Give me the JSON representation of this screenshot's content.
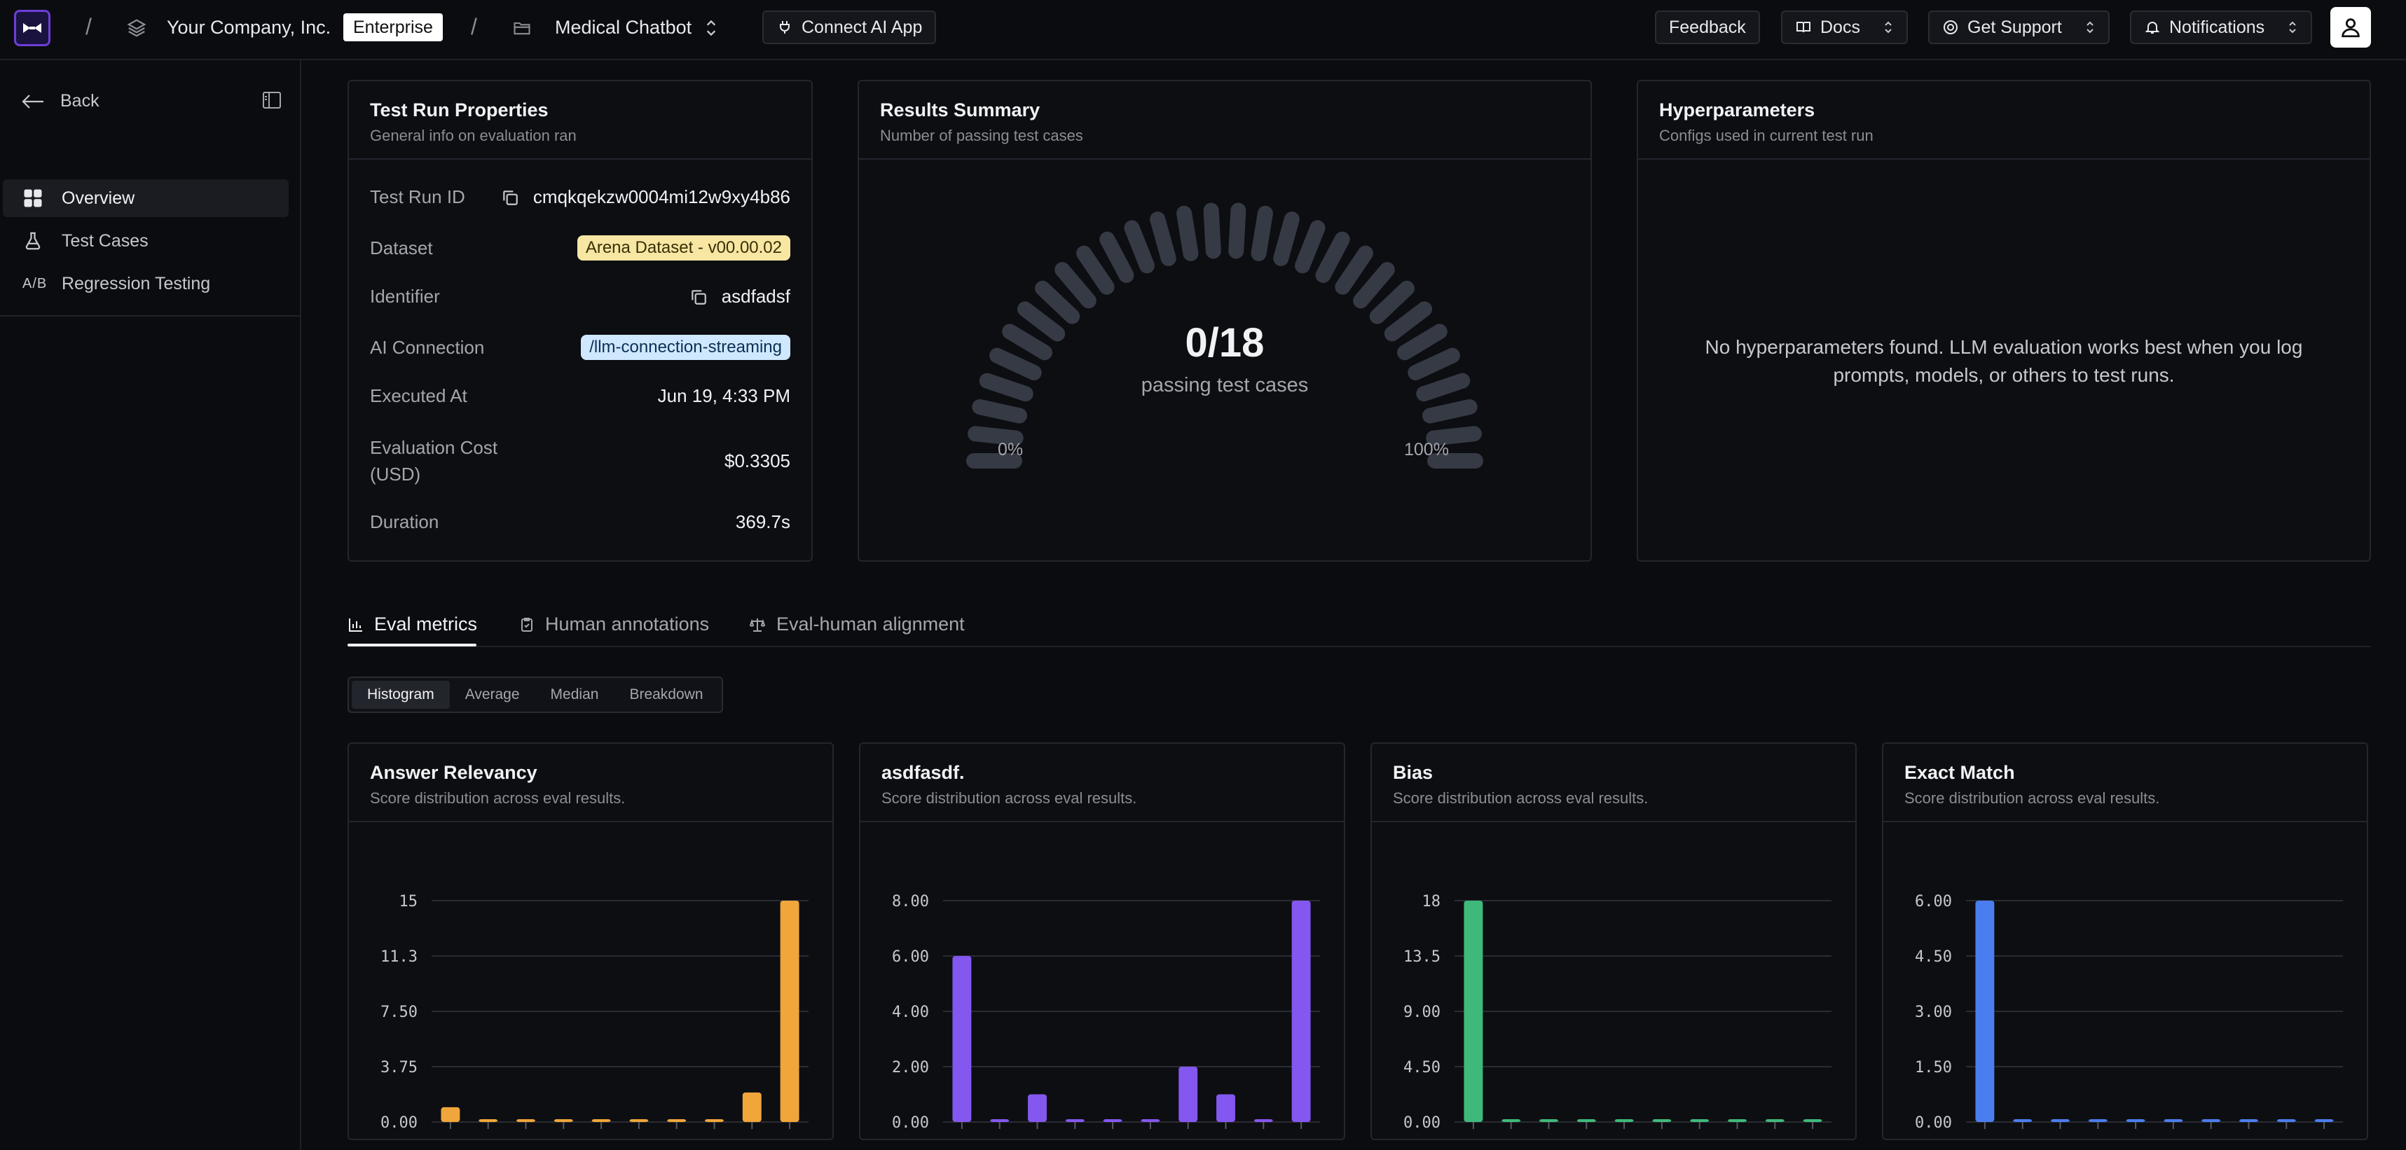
{
  "header": {
    "org_name": "Your Company, Inc.",
    "plan_badge": "Enterprise",
    "project_name": "Medical Chatbot",
    "connect_button": "Connect AI App",
    "feedback_button": "Feedback",
    "docs_button": "Docs",
    "support_button": "Get Support",
    "notifications_button": "Notifications"
  },
  "sidebar": {
    "back_label": "Back",
    "items": [
      {
        "label": "Overview",
        "icon": "grid-icon",
        "active": true
      },
      {
        "label": "Test Cases",
        "icon": "flask-icon",
        "active": false
      },
      {
        "label": "Regression Testing",
        "icon": "ab-icon",
        "active": false
      }
    ]
  },
  "test_run": {
    "title": "Test Run Properties",
    "subtitle": "General info on evaluation ran",
    "rows": [
      {
        "label": "Test Run ID",
        "value": "cmqkqekzw0004mi12w9xy4b86"
      },
      {
        "label": "Dataset",
        "value": "Arena Dataset - v00.00.02"
      },
      {
        "label": "Identifier",
        "value": "asdfadsf"
      },
      {
        "label": "AI Connection",
        "value": "/llm-connection-streaming"
      },
      {
        "label": "Executed At",
        "value": "Jun 19, 4:33 PM"
      },
      {
        "label": "Evaluation Cost (USD)",
        "value": "$0.3305"
      },
      {
        "label": "Duration",
        "value": "369.7s"
      }
    ]
  },
  "results": {
    "title": "Results Summary",
    "subtitle": "Number of passing test cases",
    "score": "0/18",
    "score_label": "passing test cases",
    "passing": 0,
    "total": 18,
    "min_label": "0%",
    "max_label": "100%"
  },
  "hyperparameters": {
    "title": "Hyperparameters",
    "subtitle": "Configs used in current test run",
    "empty_message": "No hyperparameters found. LLM evaluation works best when you log prompts, models, or others to test runs."
  },
  "tabs": [
    {
      "label": "Eval metrics",
      "icon": "bar-chart-icon",
      "active": true
    },
    {
      "label": "Human annotations",
      "icon": "clipboard-check-icon",
      "active": false
    },
    {
      "label": "Eval-human alignment",
      "icon": "scale-icon",
      "active": false
    }
  ],
  "view_modes": [
    {
      "label": "Histogram",
      "active": true
    },
    {
      "label": "Average",
      "active": false
    },
    {
      "label": "Median",
      "active": false
    },
    {
      "label": "Breakdown",
      "active": false
    }
  ],
  "colors": {
    "accent": "#6d3fd6",
    "answer_relevancy": "#f0a63a",
    "asdfasdf": "#8457f0",
    "bias": "#3fb97a",
    "exact_match": "#4a7ef0"
  },
  "chart_data": [
    {
      "type": "bar",
      "title": "Answer Relevancy",
      "subtitle": "Score distribution across eval results.",
      "categories": [
        "0.0-0.1",
        "0.1-0.2",
        "0.2-0.3",
        "0.3-0.4",
        "0.4-0.5",
        "0.5-0.6",
        "0.6-0.7",
        "0.7-0.8",
        "0.8-0.9",
        "0.9-1.0"
      ],
      "x_tick_labels": [
        "0.0-0.1",
        "0.2-0.3",
        "0.4-0.5",
        "0.6-0.7",
        "0.8-0.9"
      ],
      "values": [
        1,
        0,
        0,
        0,
        0,
        0,
        0,
        0,
        2,
        15
      ],
      "ylim": [
        0,
        15
      ],
      "yticks": [
        "0.00",
        "3.75",
        "7.50",
        "11.3",
        "15"
      ],
      "color": "#f0a63a"
    },
    {
      "type": "bar",
      "title": "asdfasdf.",
      "subtitle": "Score distribution across eval results.",
      "categories": [
        "0.0-0.1",
        "0.1-0.2",
        "0.2-0.3",
        "0.3-0.4",
        "0.4-0.5",
        "0.5-0.6",
        "0.6-0.7",
        "0.7-0.8",
        "0.8-0.9",
        "0.9-1.0"
      ],
      "x_tick_labels": [
        "0.0-0.1",
        "0.2-0.3",
        "0.4-0.5",
        "0.6-0.7",
        "0.8-0.9"
      ],
      "values": [
        6,
        0,
        1,
        0,
        0,
        0,
        2,
        1,
        0,
        8
      ],
      "ylim": [
        0,
        8
      ],
      "yticks": [
        "0.00",
        "2.00",
        "4.00",
        "6.00",
        "8.00"
      ],
      "color": "#8457f0"
    },
    {
      "type": "bar",
      "title": "Bias",
      "subtitle": "Score distribution across eval results.",
      "categories": [
        "0.0-0.1",
        "0.1-0.2",
        "0.2-0.3",
        "0.3-0.4",
        "0.4-0.5",
        "0.5-0.6",
        "0.6-0.7",
        "0.7-0.8",
        "0.8-0.9",
        "0.9-1.0"
      ],
      "x_tick_labels": [
        "0.0-0.1",
        "0.2-0.3",
        "0.4-0.5",
        "0.6-0.7",
        "0.8-0.9"
      ],
      "values": [
        18,
        0,
        0,
        0,
        0,
        0,
        0,
        0,
        0,
        0
      ],
      "ylim": [
        0,
        18
      ],
      "yticks": [
        "0.00",
        "4.50",
        "9.00",
        "13.5",
        "18"
      ],
      "color": "#3fb97a"
    },
    {
      "type": "bar",
      "title": "Exact Match",
      "subtitle": "Score distribution across eval results.",
      "categories": [
        "0.0-0.1",
        "0.1-0.2",
        "0.2-0.3",
        "0.3-0.4",
        "0.4-0.5",
        "0.5-0.6",
        "0.6-0.7",
        "0.7-0.8",
        "0.8-0.9",
        "0.9-1.0"
      ],
      "x_tick_labels": [
        "0.0-0.1",
        "0.2-0.3",
        "0.4-0.5",
        "0.6-0.7",
        "0.8-0.9"
      ],
      "values": [
        6,
        0,
        0,
        0,
        0,
        0,
        0,
        0,
        0,
        0
      ],
      "ylim": [
        0,
        6
      ],
      "yticks": [
        "0.00",
        "1.50",
        "3.00",
        "4.50",
        "6.00"
      ],
      "color": "#4a7ef0"
    }
  ]
}
